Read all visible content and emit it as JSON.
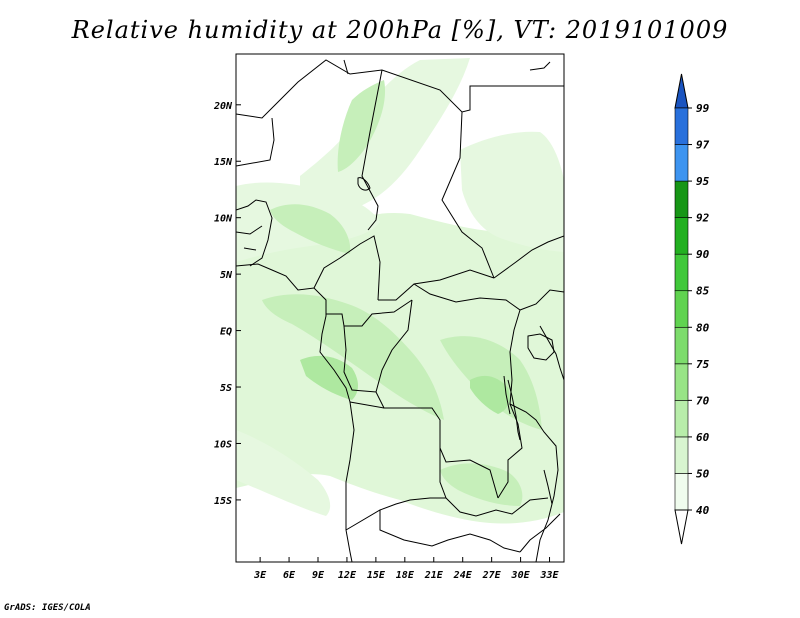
{
  "title": "Relative humidity at 200hPa [%], VT: 2019101009",
  "credit": "GrADS: IGES/COLA",
  "map": {
    "lat_ticks": [
      "20N",
      "15N",
      "10N",
      "5N",
      "EQ",
      "5S",
      "10S",
      "15S"
    ],
    "lon_ticks": [
      "3E",
      "6E",
      "9E",
      "12E",
      "15E",
      "18E",
      "21E",
      "24E",
      "27E",
      "30E",
      "33E"
    ],
    "lat_values": [
      20,
      15,
      10,
      5,
      0,
      -5,
      -10,
      -15
    ],
    "lon_values": [
      3,
      6,
      9,
      12,
      15,
      18,
      21,
      24,
      27,
      30,
      33
    ]
  },
  "colorbar": {
    "levels": [
      "40",
      "50",
      "60",
      "70",
      "75",
      "80",
      "85",
      "90",
      "92",
      "95",
      "97",
      "99"
    ],
    "colors": [
      "#f0fcee",
      "#d8f5d0",
      "#b8edaa",
      "#98e486",
      "#7ddc6c",
      "#60d350",
      "#40c83a",
      "#22b020",
      "#179616",
      "#3d94f0",
      "#2870dc",
      "#1a54c0"
    ],
    "under_color": "#ffffff",
    "over_color": "#1a54c0"
  },
  "colors": {
    "humid_light": "#e6f8e0",
    "humid_mid": "#c8f0bc",
    "humid_dark": "#aee8a0",
    "border": "#000000"
  }
}
